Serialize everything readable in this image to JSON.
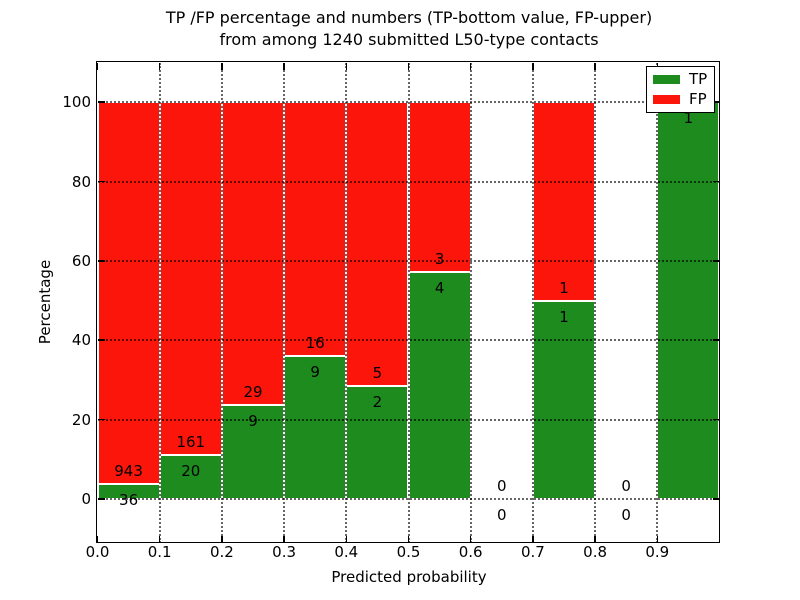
{
  "figure": {
    "title_line1": "TP /FP percentage and numbers (TP-bottom value, FP-upper)",
    "title_line2": "from among 1240 submitted L50-type contacts",
    "xlabel": "Predicted probability",
    "ylabel": "Percentage"
  },
  "legend": {
    "items": [
      {
        "label": "TP",
        "color": "#1e8b1e"
      },
      {
        "label": "FP",
        "color": "#fb150b"
      }
    ]
  },
  "chart_data": {
    "type": "bar",
    "stacked": true,
    "values_are": "counts per predicted-probability bin; bars drawn as percent of bin total (TP green bottom, FP red top, stacked to 100%); numeric labels show raw counts (TP bottom value, FP upper value)",
    "title": "TP /FP percentage and numbers (TP-bottom value, FP-upper) from among 1240 submitted L50-type contacts",
    "xlabel": "Predicted probability",
    "ylabel": "Percentage",
    "total_submitted": 1240,
    "bin_edges": [
      0.0,
      0.1,
      0.2,
      0.3,
      0.4,
      0.5,
      0.6,
      0.7,
      0.8,
      0.9,
      1.0
    ],
    "x_tick_labels": [
      "0.0",
      "0.1",
      "0.2",
      "0.3",
      "0.4",
      "0.5",
      "0.6",
      "0.7",
      "0.8",
      "0.9"
    ],
    "y_ticks": [
      0,
      20,
      40,
      60,
      80,
      100
    ],
    "y_tick_labels": [
      "0",
      "20",
      "40",
      "60",
      "80",
      "100"
    ],
    "xlim": [
      0.0,
      1.0
    ],
    "ylim": [
      -11,
      110
    ],
    "grid": "dotted, both axes",
    "legend_position": "upper right",
    "series": [
      {
        "name": "TP",
        "color": "#1e8b1e",
        "counts": [
          36,
          20,
          9,
          9,
          2,
          4,
          0,
          1,
          0,
          1
        ]
      },
      {
        "name": "FP",
        "color": "#fb150b",
        "counts": [
          943,
          161,
          29,
          16,
          5,
          3,
          0,
          1,
          0,
          0
        ]
      }
    ],
    "tp_percent_by_bin": [
      3.7,
      11.0,
      23.7,
      36.0,
      28.6,
      57.1,
      null,
      50.0,
      null,
      100.0
    ]
  }
}
